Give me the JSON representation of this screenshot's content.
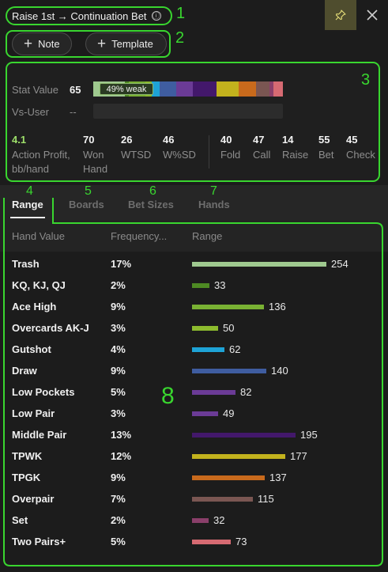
{
  "header": {
    "title": "Raise 1st → Continuation Bet",
    "info_icon": "ⓘ",
    "pin_icon": "pin-icon",
    "close_icon": "close-icon"
  },
  "buttons": {
    "note_label": "Note",
    "template_label": "Template"
  },
  "annotations": {
    "n1": "1",
    "n2": "2",
    "n3": "3",
    "n4": "4",
    "n5": "5",
    "n6": "6",
    "n7": "7",
    "n8": "8"
  },
  "stats": {
    "stat_value_label": "Stat Value",
    "stat_value": "65",
    "badge": "49% weak",
    "vs_user_label": "Vs-User",
    "vs_user_value": "--",
    "metrics": [
      {
        "value": "4.1",
        "label1": "Action Profit,",
        "label2": "bb/hand"
      },
      {
        "value": "70",
        "label1": "Won",
        "label2": "Hand"
      },
      {
        "value": "26",
        "label1": "WTSD",
        "label2": ""
      },
      {
        "value": "46",
        "label1": "W%SD",
        "label2": ""
      },
      {
        "value": "40",
        "label1": "Fold",
        "label2": ""
      },
      {
        "value": "47",
        "label1": "Call",
        "label2": ""
      },
      {
        "value": "14",
        "label1": "Raise",
        "label2": ""
      },
      {
        "value": "55",
        "label1": "Bet",
        "label2": ""
      },
      {
        "value": "45",
        "label1": "Check",
        "label2": ""
      }
    ],
    "accent_metric_color": "#9ee06a"
  },
  "tabs": [
    {
      "label": "Range",
      "active": true
    },
    {
      "label": "Boards",
      "active": false
    },
    {
      "label": "Bet Sizes",
      "active": false
    },
    {
      "label": "Hands",
      "active": false
    }
  ],
  "table": {
    "headers": [
      "Hand Value",
      "Frequency...",
      "Range"
    ],
    "rows": [
      {
        "hand": "Trash",
        "freq": "17%",
        "count": "254",
        "color": "#9fc98f"
      },
      {
        "hand": "KQ, KJ, QJ",
        "freq": "2%",
        "count": "33",
        "color": "#4e8a23"
      },
      {
        "hand": "Ace High",
        "freq": "9%",
        "count": "136",
        "color": "#79b133"
      },
      {
        "hand": "Overcards AK-J",
        "freq": "3%",
        "count": "50",
        "color": "#8dbb2e"
      },
      {
        "hand": "Gutshot",
        "freq": "4%",
        "count": "62",
        "color": "#1ea3d6"
      },
      {
        "hand": "Draw",
        "freq": "9%",
        "count": "140",
        "color": "#3f5da0"
      },
      {
        "hand": "Low Pockets",
        "freq": "5%",
        "count": "82",
        "color": "#6b3b96"
      },
      {
        "hand": "Low Pair",
        "freq": "3%",
        "count": "49",
        "color": "#6b3b96"
      },
      {
        "hand": "Middle Pair",
        "freq": "13%",
        "count": "195",
        "color": "#43186b"
      },
      {
        "hand": "TPWK",
        "freq": "12%",
        "count": "177",
        "color": "#c2b21d"
      },
      {
        "hand": "TPGK",
        "freq": "9%",
        "count": "137",
        "color": "#c86a1c"
      },
      {
        "hand": "Overpair",
        "freq": "7%",
        "count": "115",
        "color": "#7a5652"
      },
      {
        "hand": "Set",
        "freq": "2%",
        "count": "32",
        "color": "#8a3f6a"
      },
      {
        "hand": "Two Pairs+",
        "freq": "5%",
        "count": "73",
        "color": "#d66a72"
      }
    ],
    "max_count": 254
  },
  "colors": {
    "highlight": "#39d62f",
    "pin_bg": "#4f4d2e"
  }
}
